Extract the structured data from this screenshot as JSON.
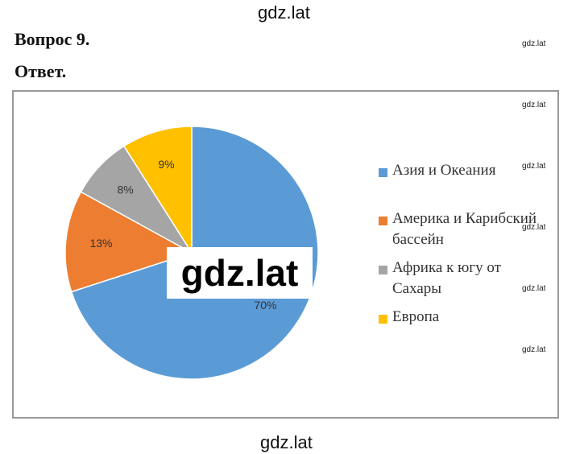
{
  "header": {
    "site": "gdz.lat",
    "question": "Вопрос 9.",
    "answer": "Ответ."
  },
  "chart_data": {
    "type": "pie",
    "series": [
      {
        "name": "Азия и Океания",
        "color": "#5b9bd5",
        "values": [
          70
        ],
        "value_labels": [
          "70%"
        ]
      },
      {
        "name": "Америка и Карибский бассейн",
        "color": "#ed7d31",
        "values": [
          13
        ],
        "value_labels": [
          "13%"
        ]
      },
      {
        "name": "Африка к югу от Сахары",
        "color": "#a5a5a5",
        "values": [
          8
        ],
        "value_labels": [
          "8%"
        ]
      },
      {
        "name": "Европа",
        "color": "#ffc000",
        "values": [
          9
        ],
        "value_labels": [
          "9%"
        ]
      }
    ]
  },
  "watermarks": {
    "center": "gdz.lat",
    "footer": "gdz.lat",
    "side": [
      "gdz.lat",
      "gdz.lat",
      "gdz.lat",
      "gdz.lat",
      "gdz.lat",
      "gdz.lat"
    ]
  }
}
